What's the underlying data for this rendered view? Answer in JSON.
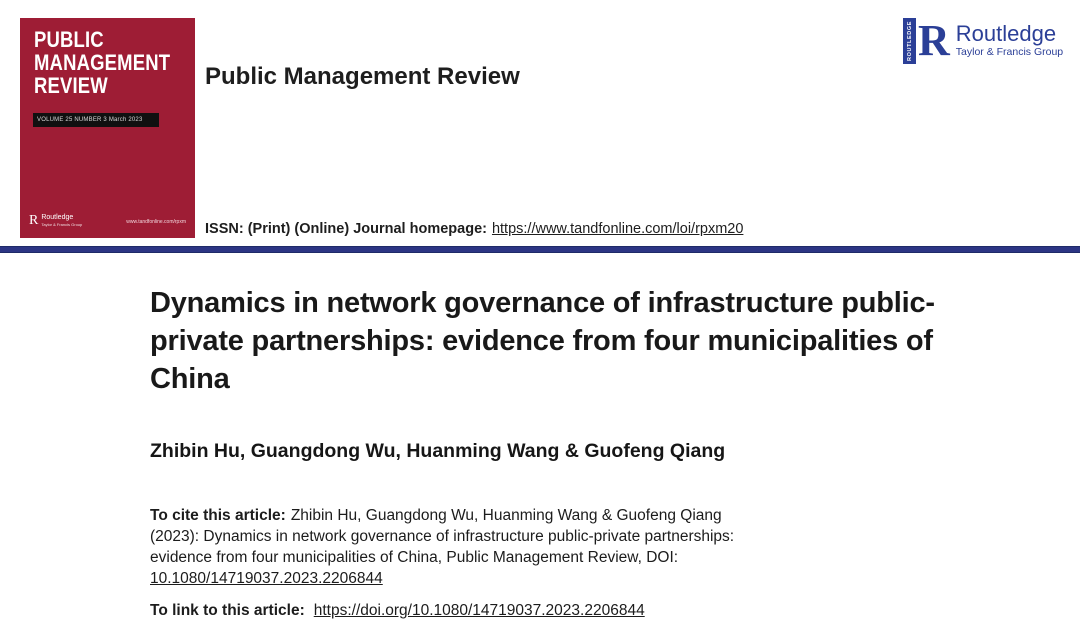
{
  "journal_cover": {
    "title_lines": [
      "PUBLIC",
      "MANAGEMENT",
      "REVIEW"
    ],
    "volume_bar": "VOLUME 25 NUMBER 3 March 2023",
    "publisher_mark": "R",
    "publisher_name": "Routledge",
    "publisher_tagline": "Taylor & Francis Group",
    "website": "www.tandfonline.com/rpxm",
    "bg_color": "#9e1d35"
  },
  "header": {
    "journal_title": "Public Management Review",
    "issn_label": "ISSN: (Print) (Online) Journal homepage:",
    "homepage_url": "https://www.tandfonline.com/loi/rpxm20"
  },
  "publisher_logo": {
    "vertical_text": "ROUTLEDGE",
    "mark": "R",
    "name": "Routledge",
    "tagline": "Taylor & Francis Group",
    "color": "#2b3f97"
  },
  "article": {
    "title": "Dynamics in network governance of infrastructure public-private partnerships: evidence from four municipalities of China",
    "authors": "Zhibin Hu, Guangdong Wu, Huanming Wang & Guofeng Qiang"
  },
  "citation": {
    "label": "To cite this article:",
    "line1_rest": "Zhibin Hu, Guangdong Wu, Huanming Wang & Guofeng Qiang",
    "line2": "(2023): Dynamics in network governance of infrastructure public-private partnerships:",
    "line3": "evidence from four municipalities of China, Public Management Review, DOI:",
    "doi": "10.1080/14719037.2023.2206844"
  },
  "link_row": {
    "label": "To link to this article:",
    "url": "https://doi.org/10.1080/14719037.2023.2206844"
  },
  "colors": {
    "cover_red": "#9e1d35",
    "divider_navy": "#2c3584",
    "logo_blue": "#2b3f97"
  }
}
